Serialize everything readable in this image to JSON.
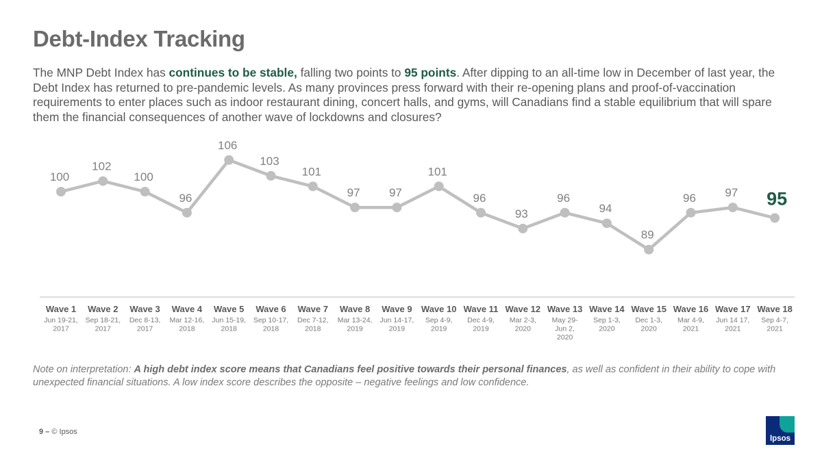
{
  "title": "Debt-Index Tracking",
  "intro": {
    "part1": "The MNP Debt Index has ",
    "hl1": "continues to be stable,",
    "part2": " falling two points to ",
    "hl2": "95 points",
    "part3": ". After dipping to an all-time low in December of last year, the Debt Index has returned to pre-pandemic levels. As many provinces press forward with their re-opening plans and proof-of-vaccination requirements to enter places such as indoor restaurant dining, concert halls, and gyms, will Canadians find a stable equilibrium that will spare them the financial consequences of another wave of lockdowns and closures?"
  },
  "chart_data": {
    "type": "line",
    "categories": [
      "Wave 1",
      "Wave 2",
      "Wave 3",
      "Wave 4",
      "Wave 5",
      "Wave 6",
      "Wave 7",
      "Wave 8",
      "Wave 9",
      "Wave 10",
      "Wave 11",
      "Wave 12",
      "Wave 13",
      "Wave 14",
      "Wave 15",
      "Wave 16",
      "Wave 17",
      "Wave 18"
    ],
    "dates": [
      [
        "Jun 19-21,",
        "2017"
      ],
      [
        "Sep 18-21,",
        "2017"
      ],
      [
        "Dec 8-13,",
        "2017"
      ],
      [
        "Mar 12-16,",
        "2018"
      ],
      [
        "Jun 15-19,",
        "2018"
      ],
      [
        "Sep 10-17,",
        "2018"
      ],
      [
        "Dec 7-12,",
        "2018"
      ],
      [
        "Mar 13-24,",
        "2019"
      ],
      [
        "Jun 14-17,",
        "2019"
      ],
      [
        "Sep 4-9,",
        "2019"
      ],
      [
        "Dec 4-9,",
        "2019"
      ],
      [
        "Mar 2-3,",
        "2020"
      ],
      [
        "May 29-",
        "Jun 2,",
        "2020"
      ],
      [
        "Sep 1-3,",
        "2020"
      ],
      [
        "Dec 1-3,",
        "2020"
      ],
      [
        "Mar 4-9,",
        "2021"
      ],
      [
        "Jun 14 17,",
        "2021"
      ],
      [
        "Sep 4-7,",
        "2021"
      ]
    ],
    "values": [
      100,
      102,
      100,
      96,
      106,
      103,
      101,
      97,
      97,
      101,
      96,
      93,
      96,
      94,
      89,
      96,
      97,
      95
    ],
    "line_color": "#bfbfbf",
    "label_color": "#7f7f7f",
    "highlight_color": "#1f5c45",
    "highlight_index": 17
  },
  "note": {
    "prefix": "Note on interpretation: ",
    "bold": "A high debt index score means that Canadians feel positive towards their personal finances",
    "suffix": ", as well as confident in their ability to cope with unexpected financial situations. A low index score describes the opposite – negative feelings and low confidence."
  },
  "footer": {
    "page": "9",
    "sep": " – ",
    "copyright": "© Ipsos"
  },
  "logo": {
    "text": "Ipsos",
    "icon": "ipsos-logo-icon"
  }
}
